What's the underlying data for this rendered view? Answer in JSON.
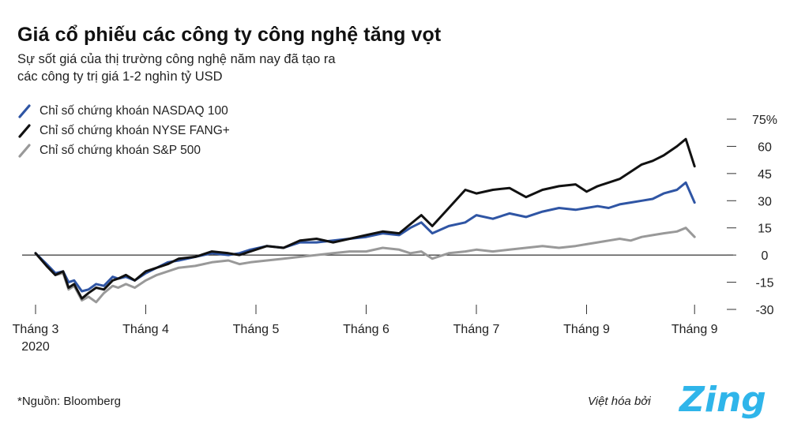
{
  "header": {
    "title": "Giá cổ phiếu các công ty công nghệ tăng vọt",
    "subtitle_line1": "Sự sốt giá của thị trường công nghệ năm nay đã tạo ra",
    "subtitle_line2": "các công ty trị giá 1-2 nghìn tỷ USD"
  },
  "footer": {
    "source": "*Nguồn: Bloomberg",
    "credit": "Việt hóa bởi",
    "logo_text": "Zing"
  },
  "colors": {
    "nasdaq": "#2f55a4",
    "fang": "#111111",
    "sp500": "#999999",
    "zero_line": "#000000",
    "logo": "#2fb5ea"
  },
  "chart_data": {
    "type": "line",
    "x_tick_labels": [
      "Tháng 3",
      "Tháng 4",
      "Tháng 5",
      "Tháng 6",
      "Tháng 7",
      "Tháng 9",
      "Tháng 9"
    ],
    "x_tick_sublabel": "2020",
    "y_tick_labels": [
      "75%",
      "60",
      "45",
      "30",
      "15",
      "0",
      "-15",
      "-30"
    ],
    "ylim": [
      -30,
      75
    ],
    "xlim": [
      0,
      6.1
    ],
    "legend_position": "top-left",
    "series": [
      {
        "name": "Chỉ số chứng khoán NASDAQ 100",
        "x": [
          0,
          0.1,
          0.18,
          0.25,
          0.3,
          0.35,
          0.42,
          0.48,
          0.55,
          0.62,
          0.7,
          0.75,
          0.82,
          0.9,
          1.0,
          1.1,
          1.2,
          1.3,
          1.45,
          1.6,
          1.75,
          1.85,
          1.95,
          2.1,
          2.25,
          2.4,
          2.55,
          2.7,
          2.85,
          3.0,
          3.15,
          3.3,
          3.4,
          3.5,
          3.6,
          3.75,
          3.9,
          4.0,
          4.15,
          4.3,
          4.45,
          4.6,
          4.75,
          4.9,
          5.0,
          5.1,
          5.2,
          5.3,
          5.4,
          5.5,
          5.6,
          5.7,
          5.82,
          5.9,
          5.98
        ],
        "values": [
          1,
          -5,
          -10,
          -9,
          -15,
          -14,
          -20,
          -19,
          -16,
          -17,
          -12,
          -13,
          -12,
          -14,
          -10,
          -7,
          -4,
          -3,
          -1,
          1,
          0,
          1,
          3,
          5,
          4,
          7,
          7,
          8,
          9,
          10,
          12,
          11,
          15,
          18,
          12,
          16,
          18,
          22,
          20,
          23,
          21,
          24,
          26,
          25,
          26,
          27,
          26,
          28,
          29,
          30,
          31,
          34,
          36,
          40,
          29
        ]
      },
      {
        "name": "Chỉ số chứng khoán NYSE FANG+",
        "x": [
          0,
          0.1,
          0.18,
          0.25,
          0.3,
          0.35,
          0.42,
          0.48,
          0.55,
          0.62,
          0.7,
          0.75,
          0.82,
          0.9,
          1.0,
          1.1,
          1.2,
          1.3,
          1.45,
          1.6,
          1.75,
          1.85,
          1.95,
          2.1,
          2.25,
          2.4,
          2.55,
          2.7,
          2.85,
          3.0,
          3.15,
          3.3,
          3.4,
          3.5,
          3.6,
          3.75,
          3.9,
          4.0,
          4.15,
          4.3,
          4.45,
          4.6,
          4.75,
          4.9,
          5.0,
          5.1,
          5.2,
          5.3,
          5.4,
          5.5,
          5.6,
          5.7,
          5.82,
          5.9,
          5.98
        ],
        "values": [
          1,
          -6,
          -11,
          -9,
          -18,
          -16,
          -24,
          -21,
          -18,
          -19,
          -14,
          -13,
          -11,
          -14,
          -9,
          -7,
          -5,
          -2,
          -1,
          2,
          1,
          0,
          2,
          5,
          4,
          8,
          9,
          7,
          9,
          11,
          13,
          12,
          17,
          22,
          16,
          26,
          36,
          34,
          36,
          37,
          32,
          36,
          38,
          39,
          35,
          38,
          40,
          42,
          46,
          50,
          52,
          55,
          60,
          64,
          49
        ]
      },
      {
        "name": "Chỉ số chứng khoán S&P 500",
        "x": [
          0,
          0.1,
          0.18,
          0.25,
          0.3,
          0.35,
          0.42,
          0.48,
          0.55,
          0.62,
          0.7,
          0.75,
          0.82,
          0.9,
          1.0,
          1.1,
          1.2,
          1.3,
          1.45,
          1.6,
          1.75,
          1.85,
          1.95,
          2.1,
          2.25,
          2.4,
          2.55,
          2.7,
          2.85,
          3.0,
          3.15,
          3.3,
          3.4,
          3.5,
          3.6,
          3.75,
          3.9,
          4.0,
          4.15,
          4.3,
          4.45,
          4.6,
          4.75,
          4.9,
          5.0,
          5.1,
          5.2,
          5.3,
          5.4,
          5.5,
          5.6,
          5.7,
          5.82,
          5.9,
          5.98
        ],
        "values": [
          1,
          -6,
          -11,
          -10,
          -19,
          -17,
          -25,
          -23,
          -26,
          -21,
          -17,
          -18,
          -16,
          -18,
          -14,
          -11,
          -9,
          -7,
          -6,
          -4,
          -3,
          -5,
          -4,
          -3,
          -2,
          -1,
          0,
          1,
          2,
          2,
          4,
          3,
          1,
          2,
          -2,
          1,
          2,
          3,
          2,
          3,
          4,
          5,
          4,
          5,
          6,
          7,
          8,
          9,
          8,
          10,
          11,
          12,
          13,
          15,
          10
        ]
      }
    ]
  }
}
